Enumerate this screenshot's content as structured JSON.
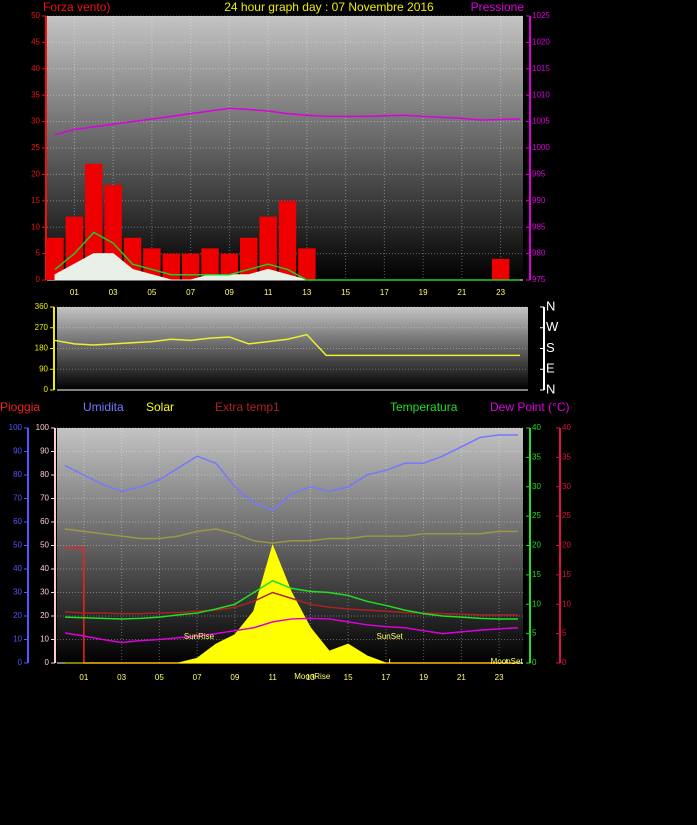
{
  "chart_data": [
    {
      "type": "line",
      "title": "24 hour graph day : 07 Novembre 2016",
      "ylabel": "Forza vento)",
      "y2label": "Pressione",
      "ycolors": [
        "#ee1111"
      ],
      "y2colors": [
        "#dd00dd"
      ],
      "grid": true,
      "x": [
        0,
        1,
        2,
        3,
        4,
        5,
        6,
        7,
        8,
        9,
        10,
        11,
        12,
        13,
        14,
        15,
        16,
        17,
        18,
        19,
        20,
        21,
        22,
        23,
        24
      ],
      "xlim": [
        0,
        24
      ],
      "xticks": [
        {
          "value": 1,
          "label": "01"
        },
        {
          "value": 3,
          "label": "03"
        },
        {
          "value": 5,
          "label": "05"
        },
        {
          "value": 7,
          "label": "07"
        },
        {
          "value": 9,
          "label": "09"
        },
        {
          "value": 11,
          "label": "11"
        },
        {
          "value": 13,
          "label": "13"
        },
        {
          "value": 15,
          "label": "15"
        },
        {
          "value": 17,
          "label": "17"
        },
        {
          "value": 19,
          "label": "19"
        },
        {
          "value": 21,
          "label": "21"
        },
        {
          "value": 23,
          "label": "23"
        }
      ],
      "ylim": [
        0,
        50
      ],
      "yticks": [
        0,
        5,
        10,
        15,
        20,
        25,
        30,
        35,
        40,
        45,
        50
      ],
      "y2lim": [
        975,
        1025
      ],
      "y2ticks": [
        975,
        980,
        985,
        990,
        995,
        1000,
        1005,
        1010,
        1015,
        1020,
        1025
      ],
      "series": [
        {
          "style": "bar",
          "color": "#ee0000",
          "values": [
            8,
            12,
            22,
            18,
            8,
            6,
            5,
            5,
            6,
            5,
            8,
            12,
            15,
            6,
            0,
            0,
            0,
            0,
            0,
            0,
            0,
            0,
            0,
            4,
            0
          ]
        },
        {
          "style": "area",
          "color": "#e8f0e8",
          "values": [
            1,
            3,
            5,
            5,
            2,
            1,
            0,
            0,
            1,
            1,
            1,
            2,
            1,
            0,
            0,
            0,
            0,
            0,
            0,
            0,
            0,
            0,
            0,
            0,
            0
          ]
        },
        {
          "style": "line",
          "color": "#22cc22",
          "values": [
            2,
            5,
            9,
            7,
            3,
            2,
            1,
            1,
            1,
            1,
            2,
            3,
            2,
            0,
            0,
            0,
            0,
            0,
            0,
            0,
            0,
            0,
            0,
            0,
            0
          ]
        },
        {
          "style": "line",
          "color": "#dd00dd",
          "axis": "y2",
          "values": [
            1002.5,
            1003.5,
            1004,
            1004.5,
            1005,
            1005.5,
            1006,
            1006.5,
            1007,
            1007.5,
            1007.3,
            1007,
            1006.5,
            1006.2,
            1006,
            1006,
            1006,
            1006.1,
            1006.2,
            1006,
            1005.8,
            1005.6,
            1005.3,
            1005.4,
            1005.5
          ]
        }
      ]
    },
    {
      "type": "line",
      "ycolors": [
        "#eeee00"
      ],
      "y2colors": [
        "#ffffff"
      ],
      "grid": true,
      "x": [
        0,
        1,
        2,
        3,
        4,
        5,
        6,
        7,
        8,
        9,
        10,
        11,
        12,
        13,
        14,
        15,
        16,
        17,
        18,
        19,
        20,
        21,
        22,
        23,
        24
      ],
      "xlim": [
        0,
        24
      ],
      "ylim": [
        0,
        360
      ],
      "yticks": [
        0,
        90,
        180,
        270,
        360
      ],
      "y2lim": [
        0,
        360
      ],
      "y2ticks": [
        {
          "value": 0,
          "label": "N"
        },
        {
          "value": 90,
          "label": "E"
        },
        {
          "value": 180,
          "label": "S"
        },
        {
          "value": 270,
          "label": "W"
        },
        {
          "value": 360,
          "label": "N"
        }
      ],
      "series": [
        {
          "style": "line",
          "color": "#eeee33",
          "values": [
            215,
            200,
            195,
            200,
            205,
            210,
            220,
            215,
            225,
            230,
            200,
            210,
            220,
            240,
            150,
            150,
            150,
            150,
            150,
            150,
            150,
            150,
            150,
            150,
            150
          ]
        }
      ]
    },
    {
      "type": "line",
      "ycolors": [
        "#5555ff",
        "#ffcccc"
      ],
      "y2colors": [
        "#22dd22",
        "#dd1144"
      ],
      "grid": true,
      "x": [
        0,
        1,
        2,
        3,
        4,
        5,
        6,
        7,
        8,
        9,
        10,
        11,
        12,
        13,
        14,
        15,
        16,
        17,
        18,
        19,
        20,
        21,
        22,
        23,
        24
      ],
      "xlim": [
        0,
        24
      ],
      "xticks": [
        {
          "value": 1,
          "label": "01"
        },
        {
          "value": 3,
          "label": "03"
        },
        {
          "value": 5,
          "label": "05"
        },
        {
          "value": 7,
          "label": "07"
        },
        {
          "value": 9,
          "label": "09"
        },
        {
          "value": 11,
          "label": "11"
        },
        {
          "value": 13,
          "label": "13"
        },
        {
          "value": 15,
          "label": "15"
        },
        {
          "value": 17,
          "label": "17"
        },
        {
          "value": 19,
          "label": "19"
        },
        {
          "value": 21,
          "label": "21"
        },
        {
          "value": 23,
          "label": "23"
        }
      ],
      "ylim": [
        0,
        100
      ],
      "yticks": [
        0,
        10,
        20,
        30,
        40,
        50,
        60,
        70,
        80,
        90,
        100
      ],
      "y2lim": [
        0,
        40
      ],
      "y2ticks": [
        0,
        5,
        10,
        15,
        20,
        25,
        30,
        35,
        40
      ],
      "series": [
        {
          "name": "Pioggia",
          "style": "step",
          "color": "#ee2222",
          "values": [
            49,
            0,
            0,
            0,
            0,
            0,
            0,
            0,
            0,
            0,
            0,
            0,
            0,
            0,
            0,
            0,
            0,
            0,
            0,
            0,
            0,
            0,
            0,
            0,
            0
          ]
        },
        {
          "name": "Umidita",
          "style": "line",
          "color": "#7777ff",
          "values": [
            84,
            80,
            76,
            73,
            75,
            78,
            83,
            88,
            85,
            75,
            68,
            65,
            72,
            75,
            73,
            75,
            80,
            82,
            85,
            85,
            88,
            92,
            96,
            97,
            97
          ]
        },
        {
          "name": "Solar",
          "style": "area",
          "color": "#ffff00",
          "values": [
            0,
            0,
            0,
            0,
            0,
            0,
            0,
            2,
            8,
            12,
            22,
            50,
            30,
            15,
            5,
            8,
            3,
            0,
            0,
            0,
            0,
            0,
            0,
            0,
            0
          ]
        },
        {
          "style": "line",
          "color": "#999944",
          "values": [
            57,
            56,
            55,
            54,
            53,
            53,
            54,
            56,
            57,
            55,
            52,
            51,
            52,
            52,
            53,
            53,
            54,
            54,
            54,
            55,
            55,
            55,
            55,
            56,
            56
          ]
        },
        {
          "name": "Extra temp1",
          "style": "line",
          "color": "#aa2222",
          "axis": "y2",
          "values": [
            8.7,
            8.5,
            8.5,
            8.4,
            8.4,
            8.5,
            8.6,
            8.8,
            9,
            9.5,
            10.5,
            12,
            11,
            10,
            9.5,
            9.2,
            9,
            8.8,
            8.6,
            8.5,
            8.4,
            8.3,
            8.2,
            8.2,
            8.2
          ]
        },
        {
          "name": "Temperatura",
          "style": "line",
          "color": "#22dd22",
          "axis": "y2",
          "values": [
            7.8,
            7.7,
            7.6,
            7.5,
            7.6,
            7.8,
            8.2,
            8.5,
            9.2,
            10,
            12,
            14,
            12.7,
            12.2,
            12,
            11.5,
            10.5,
            9.8,
            9,
            8.4,
            8,
            7.8,
            7.6,
            7.5,
            7.5
          ]
        },
        {
          "name": "Dew Point (°C)",
          "style": "line",
          "color": "#dd00dd",
          "axis": "y2",
          "values": [
            5.1,
            4.6,
            4,
            3.5,
            3.8,
            4,
            4.3,
            4.6,
            5,
            5.5,
            6,
            7,
            7.5,
            7.6,
            7.5,
            7,
            6.5,
            6.2,
            6,
            5.5,
            5,
            5.3,
            5.6,
            5.8,
            6
          ]
        }
      ],
      "annotations": [
        {
          "text": "SunRise",
          "x": 7.1
        },
        {
          "text": "SunSet",
          "x": 17.2
        },
        {
          "text": "MoonRise",
          "x": 13.1
        },
        {
          "text": "MoonSet",
          "x": 23.4
        }
      ]
    }
  ]
}
